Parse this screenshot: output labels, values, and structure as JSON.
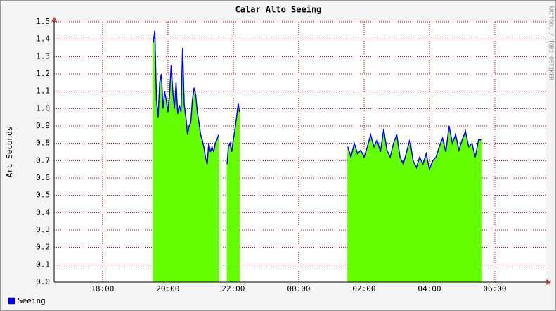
{
  "chart_data": {
    "type": "area",
    "title": "Calar Alto Seeing",
    "y_label": "Arc Seconds",
    "watermark": "RRDTOOL / TOBI OETIKER",
    "x": [
      19.55,
      19.6,
      19.65,
      19.7,
      19.75,
      19.8,
      19.85,
      19.9,
      19.95,
      20.0,
      20.05,
      20.1,
      20.15,
      20.2,
      20.25,
      20.3,
      20.35,
      20.4,
      20.45,
      20.5,
      20.55,
      20.6,
      20.65,
      20.7,
      20.75,
      20.8,
      20.85,
      20.9,
      20.95,
      21.0,
      21.05,
      21.1,
      21.15,
      21.2,
      21.25,
      21.3,
      21.35,
      21.4,
      21.45,
      21.5,
      21.55,
      21.58,
      21.62,
      21.7,
      21.81,
      21.85,
      21.9,
      21.95,
      22.0,
      22.05,
      22.1,
      22.15,
      22.19,
      23.5,
      25.5,
      25.6,
      25.7,
      25.8,
      25.9,
      26.0,
      26.1,
      26.2,
      26.3,
      26.4,
      26.5,
      26.6,
      26.7,
      26.8,
      26.9,
      27.0,
      27.1,
      27.2,
      27.3,
      27.4,
      27.5,
      27.6,
      27.7,
      27.8,
      27.9,
      28.0,
      28.1,
      28.2,
      28.3,
      28.4,
      28.5,
      28.6,
      28.7,
      28.8,
      28.9,
      29.0,
      29.1,
      29.2,
      29.3,
      29.4,
      29.5,
      29.6
    ],
    "series": [
      {
        "name": "Seeing",
        "color": "#0000ff",
        "fill": "#66ff00",
        "values": [
          1.38,
          1.45,
          1.05,
          0.95,
          1.15,
          1.2,
          1.0,
          1.1,
          1.05,
          0.98,
          1.08,
          1.25,
          1.1,
          1.0,
          1.15,
          0.97,
          1.02,
          0.98,
          1.35,
          1.02,
          0.95,
          0.85,
          0.9,
          0.92,
          1.05,
          1.12,
          1.08,
          0.98,
          0.92,
          0.85,
          0.82,
          0.78,
          0.72,
          0.68,
          0.8,
          0.75,
          0.78,
          0.75,
          0.8,
          0.82,
          0.85,
          null,
          0.71,
          null,
          0.68,
          0.78,
          0.8,
          0.75,
          0.82,
          0.88,
          0.95,
          1.03,
          0.98,
          null,
          0.78,
          0.72,
          0.8,
          0.74,
          0.76,
          0.72,
          0.78,
          0.85,
          0.78,
          0.82,
          0.75,
          0.88,
          0.76,
          0.72,
          0.8,
          0.85,
          0.72,
          0.68,
          0.75,
          0.82,
          0.7,
          0.66,
          0.72,
          0.68,
          0.74,
          0.65,
          0.7,
          0.72,
          0.78,
          0.83,
          0.75,
          0.9,
          0.8,
          0.85,
          0.76,
          0.82,
          0.87,
          0.78,
          0.8,
          0.72,
          0.82,
          0.82
        ]
      }
    ],
    "xlim": [
      16.52,
      31.57
    ],
    "xticks": [
      {
        "value": 18,
        "label": "18:00"
      },
      {
        "value": 20,
        "label": "20:00"
      },
      {
        "value": 22,
        "label": "22:00"
      },
      {
        "value": 24,
        "label": "00:00"
      },
      {
        "value": 26,
        "label": "02:00"
      },
      {
        "value": 28,
        "label": "04:00"
      },
      {
        "value": 30,
        "label": "06:00"
      }
    ],
    "ylim": [
      0,
      1.5
    ],
    "yticks": [
      {
        "value": 0,
        "label": "0.0"
      },
      0.1,
      0.2,
      0.3,
      0.4,
      0.5,
      0.6,
      0.7,
      0.8,
      0.9,
      {
        "value": 1,
        "label": "1.0"
      },
      1.1,
      1.2,
      1.3,
      1.4,
      1.5
    ],
    "grid": true,
    "legend": "bottom-left"
  }
}
